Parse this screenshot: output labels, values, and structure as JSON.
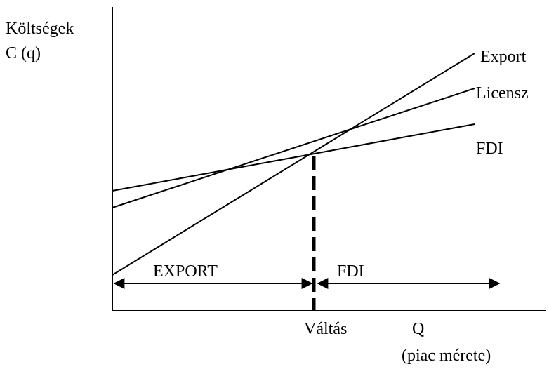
{
  "axes": {
    "y_label_1": "Költségek",
    "y_label_2": "C (q)",
    "x_label": "Q",
    "x_sublabel": "(piac mérete)"
  },
  "lines": [
    {
      "label": "Export"
    },
    {
      "label": "Licensz"
    },
    {
      "label": "FDI"
    }
  ],
  "switch_label": "Váltás",
  "regions": [
    {
      "label": "EXPORT"
    },
    {
      "label": "FDI"
    }
  ]
}
